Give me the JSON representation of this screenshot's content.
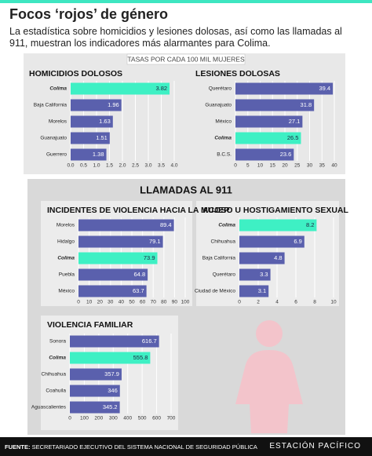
{
  "title": "Focos ‘rojos’ de género",
  "subtitle": "La estadística sobre homicidios y lesiones dolosas, así como las llamadas al 911, muestran los indicadores más alarmantes para Colima.",
  "note": "TASAS POR CADA 100 MIL MUJERES",
  "section_title": "LLAMADAS AL 911",
  "source_label": "FUENTE:",
  "source": "SECRETARIADO EJECUTIVO DEL SISTEMA NACIONAL DE SEGURIDAD PÚBLICA",
  "brand": "ESTACIÓN PACÍFICO",
  "chart_data": [
    {
      "type": "hbar",
      "title": "HOMICIDIOS DOLOSOS",
      "categories": [
        "Colima",
        "Baja California",
        "Morelos",
        "Guanajuato",
        "Guerrero"
      ],
      "values": [
        3.82,
        1.96,
        1.63,
        1.51,
        1.38
      ],
      "colors": [
        "#3ef0c4",
        "#5a60ad",
        "#5a60ad",
        "#5a60ad",
        "#5a60ad"
      ],
      "xlim": [
        0,
        4
      ],
      "xticks": [
        {
          "value": 0,
          "label": "0.0"
        },
        0.5,
        {
          "value": 1,
          "label": "1.0"
        },
        1.5,
        {
          "value": 2,
          "label": "2.0"
        },
        2.5,
        {
          "value": 3,
          "label": "3.0"
        },
        3.5,
        {
          "value": 4,
          "label": "4.0"
        }
      ],
      "grid": true
    },
    {
      "type": "hbar",
      "title": "LESIONES DOLOSAS",
      "categories": [
        "Querétaro",
        "Guanajuato",
        "México",
        "Colima",
        "B.C.S."
      ],
      "values": [
        39.4,
        31.8,
        27.1,
        26.5,
        23.6
      ],
      "colors": [
        "#5a60ad",
        "#5a60ad",
        "#5a60ad",
        "#3ef0c4",
        "#5a60ad"
      ],
      "xlim": [
        0,
        40
      ],
      "xticks": [
        0,
        5,
        10,
        15,
        20,
        25,
        30,
        35,
        40
      ],
      "grid": true
    },
    {
      "type": "hbar",
      "title": "INCIDENTES DE VIOLENCIA HACIA LA MUJER",
      "categories": [
        "Morelos",
        "Hidalgo",
        "Colima",
        "Puebla",
        "México"
      ],
      "values": [
        89.4,
        79.1,
        73.9,
        64.8,
        63.7
      ],
      "colors": [
        "#5a60ad",
        "#5a60ad",
        "#3ef0c4",
        "#5a60ad",
        "#5a60ad"
      ],
      "xlim": [
        0,
        100
      ],
      "xticks": [
        0,
        10,
        20,
        30,
        40,
        50,
        60,
        70,
        80,
        90,
        100
      ],
      "grid": true
    },
    {
      "type": "hbar",
      "title": "ACOSO U HOSTIGAMIENTO SEXUAL",
      "categories": [
        "Colima",
        "Chihuahua",
        "Baja California",
        "Querétaro",
        "Ciudad de México"
      ],
      "values": [
        8.2,
        6.9,
        4.8,
        3.3,
        3.1
      ],
      "colors": [
        "#3ef0c4",
        "#5a60ad",
        "#5a60ad",
        "#5a60ad",
        "#5a60ad"
      ],
      "xlim": [
        0,
        10
      ],
      "xticks": [
        0,
        2,
        4,
        6,
        8,
        10
      ],
      "grid": true
    },
    {
      "type": "hbar",
      "title": "VIOLENCIA FAMILIAR",
      "categories": [
        "Sonora",
        "Colima",
        "Chihuahua",
        "Coahuila",
        "Aguascalientes"
      ],
      "values": [
        616.7,
        555.8,
        357.9,
        346,
        345.2
      ],
      "colors": [
        "#5a60ad",
        "#3ef0c4",
        "#5a60ad",
        "#5a60ad",
        "#5a60ad"
      ],
      "xlim": [
        0,
        700
      ],
      "xticks": [
        0,
        100,
        200,
        300,
        400,
        500,
        600,
        700
      ],
      "grid": true
    }
  ]
}
